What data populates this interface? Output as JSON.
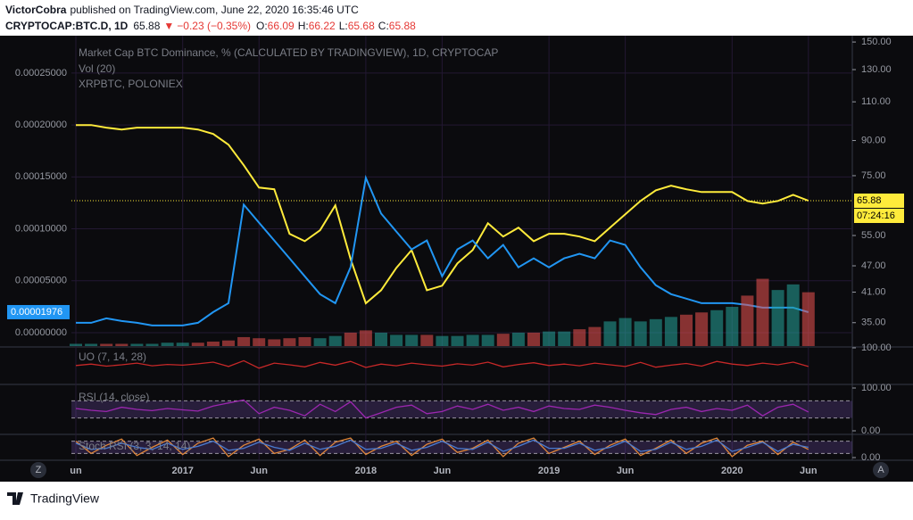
{
  "header": {
    "publisher": "VictorCobra",
    "published": "published on TradingView.com, June 22, 2020 16:35:46 UTC",
    "symbol": "CRYPTOCAP:BTC.D, 1D",
    "last": "65.88",
    "change": "−0.23 (−0.35%)",
    "ohlc": [
      {
        "key": "O:",
        "value": "66.09"
      },
      {
        "key": "H:",
        "value": "66.22"
      },
      {
        "key": "L:",
        "value": "65.68"
      },
      {
        "key": "C:",
        "value": "65.88"
      }
    ]
  },
  "chart_data": [
    {
      "type": "line",
      "countdown": "07:24:16",
      "x": [
        "2016-06",
        "2016-07",
        "2016-08",
        "2016-09",
        "2016-10",
        "2016-11",
        "2016-12",
        "2017-01",
        "2017-02",
        "2017-03",
        "2017-04",
        "2017-05",
        "2017-06",
        "2017-07",
        "2017-08",
        "2017-09",
        "2017-10",
        "2017-11",
        "2017-12",
        "2018-01",
        "2018-02",
        "2018-03",
        "2018-04",
        "2018-05",
        "2018-06",
        "2018-07",
        "2018-08",
        "2018-09",
        "2018-10",
        "2018-11",
        "2018-12",
        "2019-01",
        "2019-02",
        "2019-03",
        "2019-04",
        "2019-05",
        "2019-06",
        "2019-07",
        "2019-08",
        "2019-09",
        "2019-10",
        "2019-11",
        "2019-12",
        "2020-01",
        "2020-02",
        "2020-03",
        "2020-04",
        "2020-05",
        "2020-06"
      ],
      "xlim": [
        "2016-06",
        "2020-08"
      ],
      "xticks": [
        {
          "value": "2016-06",
          "label": "un"
        },
        {
          "value": "2017-01",
          "label": "2017"
        },
        {
          "value": "2017-06",
          "label": "Jun"
        },
        {
          "value": "2018-01",
          "label": "2018"
        },
        {
          "value": "2018-06",
          "label": "Jun"
        },
        {
          "value": "2019-01",
          "label": "2019"
        },
        {
          "value": "2019-06",
          "label": "Jun"
        },
        {
          "value": "2020-01",
          "label": "2020"
        },
        {
          "value": "2020-06",
          "label": "Jun"
        }
      ],
      "ylim": [
        -1.29e-05,
        0.000286
      ],
      "yticks": [
        {
          "value": 0.00025,
          "label": "0.00025000"
        },
        {
          "value": 0.0002,
          "label": "0.00020000"
        },
        {
          "value": 0.00015,
          "label": "0.00015000"
        },
        {
          "value": 0.0001,
          "label": "0.00010000"
        },
        {
          "value": 5e-05,
          "label": "0.00005000"
        },
        {
          "value": 0,
          "label": "0.00000000"
        }
      ],
      "y2lim": [
        31,
        155
      ],
      "y2log": true,
      "y2ticks": [
        {
          "value": 150,
          "label": "150.00"
        },
        {
          "value": 130,
          "label": "130.00"
        },
        {
          "value": 110,
          "label": "110.00"
        },
        {
          "value": 90,
          "label": "90.00"
        },
        {
          "value": 75,
          "label": "75.00"
        },
        {
          "value": 55,
          "label": "55.00"
        },
        {
          "value": 47,
          "label": "47.00"
        },
        {
          "value": 41,
          "label": "41.00"
        },
        {
          "value": 35,
          "label": "35.00"
        }
      ],
      "grid": true,
      "series": [
        {
          "name": "Market Cap BTC Dominance, % (CALCULATED BY TRADINGVIEW), 1D, CRYPTOCAP",
          "color": "#ffeb3b",
          "axis": "y2",
          "values": [
            97.5,
            97.5,
            96.2,
            95.3,
            96.2,
            96.2,
            96.2,
            96.2,
            95.3,
            93.1,
            88.1,
            79.2,
            70.5,
            69.9,
            55.5,
            53.4,
            56.5,
            64.3,
            48.7,
            38.7,
            41.4,
            46.5,
            51.0,
            41.4,
            42.4,
            47.6,
            51.0,
            58.6,
            54.7,
            57.3,
            53.4,
            55.5,
            55.5,
            54.7,
            53.4,
            57.3,
            61.4,
            65.8,
            69.5,
            71.2,
            69.9,
            68.9,
            68.9,
            68.9,
            65.8,
            64.9,
            65.8,
            67.9,
            65.88
          ]
        },
        {
          "name": "XRPBTC, POLONIEX",
          "color": "#2196f3",
          "axis": "y",
          "values": [
            9.5e-06,
            9.5e-06,
            1.38e-05,
            1.12e-05,
            9.5e-06,
            6.9e-06,
            6.9e-06,
            6.9e-06,
            9.5e-06,
            1.98e-05,
            2.84e-05,
            0.0001233,
            0.000106,
            8.88e-05,
            7.16e-05,
            5.43e-05,
            3.71e-05,
            2.84e-05,
            6.29e-05,
            0.0001491,
            0.0001147,
            9.74e-05,
            8.02e-05,
            8.88e-05,
            5.43e-05,
            8.02e-05,
            8.88e-05,
            7.16e-05,
            8.45e-05,
            6.29e-05,
            7.16e-05,
            6.29e-05,
            7.16e-05,
            7.59e-05,
            7.16e-05,
            8.88e-05,
            8.45e-05,
            6.29e-05,
            4.57e-05,
            3.71e-05,
            3.28e-05,
            2.84e-05,
            2.84e-05,
            2.84e-05,
            2.67e-05,
            2.41e-05,
            2.41e-05,
            2.41e-05,
            1.976e-05
          ]
        }
      ]
    },
    {
      "type": "bar",
      "title": "Vol (20)",
      "ylim": [
        0,
        70
      ],
      "up_color": "#26a69a",
      "down_color": "#ef5350",
      "values": [
        2,
        2,
        2,
        2,
        2,
        2,
        3,
        3,
        3,
        4,
        5,
        8,
        7,
        6,
        7,
        8,
        7,
        9,
        12,
        14,
        12,
        10,
        10,
        10,
        9,
        9,
        10,
        10,
        11,
        12,
        12,
        13,
        13,
        15,
        17,
        22,
        25,
        22,
        24,
        26,
        28,
        30,
        32,
        35,
        45,
        60,
        50,
        55,
        48
      ]
    },
    {
      "type": "line",
      "title": "UO (7, 14, 28)",
      "ylim": [
        0,
        100
      ],
      "yticks": [
        {
          "value": 100,
          "label": "100.00"
        }
      ],
      "series": [
        {
          "color": "#c62828",
          "values": [
            48,
            52,
            46,
            50,
            55,
            47,
            51,
            49,
            53,
            58,
            45,
            62,
            40,
            55,
            50,
            44,
            57,
            49,
            60,
            42,
            52,
            47,
            55,
            50,
            46,
            53,
            49,
            58,
            44,
            51,
            56,
            48,
            52,
            47,
            55,
            50,
            45,
            57,
            43,
            49,
            54,
            46,
            60,
            52,
            48,
            55,
            50,
            58,
            45
          ]
        }
      ]
    },
    {
      "type": "line",
      "title": "RSI (14, close)",
      "ylim": [
        0,
        100
      ],
      "yticks": [
        {
          "value": 100,
          "label": "100.00"
        },
        {
          "value": 0,
          "label": "0.00"
        }
      ],
      "levels": [
        70,
        30
      ],
      "series": [
        {
          "color": "#9c27b0",
          "values": [
            52,
            48,
            45,
            55,
            50,
            47,
            52,
            49,
            46,
            58,
            65,
            72,
            40,
            55,
            48,
            35,
            62,
            45,
            68,
            30,
            42,
            55,
            60,
            40,
            45,
            58,
            50,
            62,
            48,
            55,
            45,
            58,
            52,
            50,
            60,
            55,
            48,
            42,
            38,
            50,
            55,
            45,
            52,
            48,
            60,
            35,
            55,
            62,
            44
          ]
        }
      ]
    },
    {
      "type": "line",
      "title": "Stoch RSI (3, 3, 14, 14)",
      "ylim": [
        0,
        100
      ],
      "yticks": [
        {
          "value": 0,
          "label": "0.00"
        }
      ],
      "levels": [
        80,
        20
      ],
      "series": [
        {
          "color": "#e0873a",
          "values": [
            80,
            20,
            60,
            90,
            10,
            50,
            85,
            15,
            70,
            95,
            5,
            60,
            90,
            20,
            40,
            85,
            10,
            75,
            95,
            15,
            55,
            80,
            10,
            65,
            90,
            25,
            45,
            85,
            5,
            70,
            95,
            20,
            50,
            80,
            15,
            60,
            90,
            10,
            45,
            85,
            20,
            70,
            95,
            5,
            60,
            80,
            15,
            75,
            40
          ]
        },
        {
          "color": "#4a7bd0",
          "values": [
            70,
            40,
            45,
            70,
            50,
            40,
            70,
            40,
            55,
            80,
            35,
            45,
            75,
            50,
            35,
            70,
            40,
            55,
            85,
            40,
            45,
            70,
            35,
            50,
            80,
            45,
            40,
            75,
            30,
            55,
            85,
            45,
            45,
            70,
            35,
            50,
            80,
            30,
            40,
            75,
            40,
            55,
            85,
            30,
            50,
            75,
            30,
            65,
            50
          ]
        }
      ]
    }
  ],
  "footer": {
    "brand": "TradingView",
    "left_button": "Z",
    "right_button": "A"
  }
}
